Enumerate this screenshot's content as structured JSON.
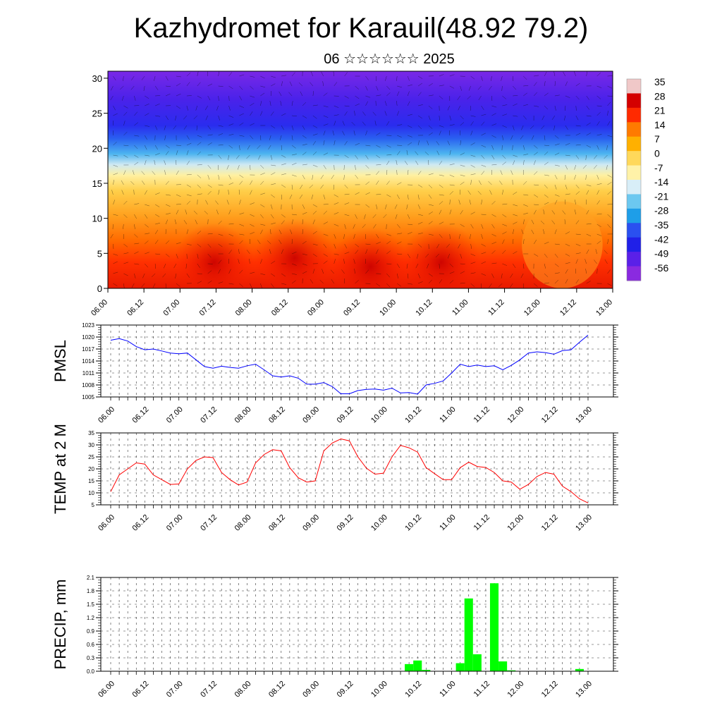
{
  "title": "Kazhydromet for Karauil(48.92 79.2)",
  "subtitle": "06 ☆☆☆☆☆☆ 2025",
  "chart_data": [
    {
      "type": "heatmap",
      "ylim": [
        0,
        31
      ],
      "y_ticks": [
        0,
        5,
        10,
        15,
        20,
        25,
        30
      ],
      "x_ticks": [
        "06.00",
        "06.12",
        "07.00",
        "07.12",
        "08.00",
        "08.12",
        "09.00",
        "09.12",
        "10.00",
        "10.12",
        "11.00",
        "11.12",
        "12.00",
        "12.12",
        "13.00"
      ],
      "colorbar_labels": [
        "35",
        "28",
        "21",
        "14",
        "7",
        "0",
        "-7",
        "-14",
        "-21",
        "-28",
        "-35",
        "-42",
        "-49",
        "-56"
      ],
      "colorbar_colors": [
        "#f0c8c8",
        "#d40000",
        "#ff2a00",
        "#ff7a00",
        "#ffb000",
        "#ffd85a",
        "#fff2a8",
        "#d8eef8",
        "#6cc8f0",
        "#1e9ee8",
        "#2a50f0",
        "#2020e8",
        "#5a20e8",
        "#8a2ae0"
      ],
      "description_note": ""
    },
    {
      "type": "line",
      "ylabel": "PMSL",
      "ylim": [
        1005,
        1023
      ],
      "y_ticks": [
        1005,
        1008,
        1011,
        1014,
        1017,
        1020,
        1023
      ],
      "x_ticks": [
        "06.00",
        "06.12",
        "07.00",
        "07.12",
        "08.00",
        "08.12",
        "09.00",
        "09.12",
        "10.00",
        "10.12",
        "11.00",
        "11.12",
        "12.00",
        "12.12",
        "13.00"
      ],
      "color": "#0000ff",
      "x": [
        0,
        3,
        6,
        9,
        12,
        15,
        18,
        21,
        24,
        27,
        30,
        33,
        36,
        39,
        42,
        45,
        48,
        51,
        54,
        57,
        60,
        63,
        66,
        69,
        72,
        75,
        78,
        81,
        84,
        87,
        90,
        93,
        96,
        99,
        102,
        105,
        108,
        111,
        114,
        117,
        120,
        123,
        126,
        129,
        132,
        135,
        138,
        141,
        144,
        147,
        150,
        153,
        156,
        159,
        162,
        165,
        168
      ],
      "values": [
        1019.2,
        1019.6,
        1019.0,
        1017.6,
        1016.8,
        1017.0,
        1016.5,
        1016.0,
        1015.8,
        1016.0,
        1014.3,
        1012.6,
        1012.2,
        1012.7,
        1012.4,
        1012.2,
        1012.8,
        1013.2,
        1011.8,
        1010.3,
        1010.0,
        1010.3,
        1009.7,
        1008.2,
        1008.2,
        1008.6,
        1007.6,
        1005.8,
        1005.8,
        1006.6,
        1006.9,
        1007.0,
        1006.7,
        1007.2,
        1006.0,
        1006.1,
        1005.7,
        1008.0,
        1008.4,
        1009.0,
        1011.0,
        1013.2,
        1012.6,
        1013.0,
        1012.6,
        1012.8,
        1011.8,
        1012.9,
        1014.3,
        1016.0,
        1016.3,
        1016.1,
        1015.7,
        1016.6,
        1016.8,
        1018.7,
        1020.5
      ]
    },
    {
      "type": "line",
      "ylabel": "TEMP at 2 M",
      "ylim": [
        5,
        35
      ],
      "y_ticks": [
        5,
        10,
        15,
        20,
        25,
        30,
        35
      ],
      "x_ticks": [
        "06.00",
        "06.12",
        "07.00",
        "07.12",
        "08.00",
        "08.12",
        "09.00",
        "09.12",
        "10.00",
        "10.12",
        "11.00",
        "11.12",
        "12.00",
        "12.12",
        "13.00"
      ],
      "color": "#ff0000",
      "x": [
        0,
        3,
        6,
        9,
        12,
        15,
        18,
        21,
        24,
        27,
        30,
        33,
        36,
        39,
        42,
        45,
        48,
        51,
        54,
        57,
        60,
        63,
        66,
        69,
        72,
        75,
        78,
        81,
        84,
        87,
        90,
        93,
        96,
        99,
        102,
        105,
        108,
        111,
        114,
        117,
        120,
        123,
        126,
        129,
        132,
        135,
        138,
        141,
        144,
        147,
        150,
        153,
        156,
        159,
        162,
        165,
        168
      ],
      "values": [
        10.5,
        17.5,
        20.0,
        22.5,
        22.0,
        17.5,
        15.5,
        13.5,
        13.7,
        20.0,
        23.5,
        25.0,
        24.7,
        18.5,
        15.5,
        13.3,
        14.5,
        22.5,
        26.0,
        28.0,
        27.5,
        20.5,
        16.3,
        14.5,
        15.0,
        27.5,
        30.8,
        32.5,
        31.7,
        25.0,
        20.3,
        17.8,
        18.2,
        25.0,
        29.8,
        28.8,
        27.0,
        20.5,
        18.0,
        15.5,
        15.5,
        20.5,
        22.8,
        21.0,
        20.6,
        18.5,
        15.0,
        14.5,
        11.5,
        13.5,
        16.8,
        18.5,
        17.8,
        12.8,
        10.5,
        7.5,
        5.8
      ]
    },
    {
      "type": "bar",
      "ylabel": "PRECIP, mm",
      "ylim": [
        0,
        2.1
      ],
      "y_ticks": [
        "0.0",
        "0.3",
        "0.6",
        "0.9",
        "1.2",
        "1.5",
        "1.8",
        "2.1"
      ],
      "x_ticks": [
        "06.00",
        "06.12",
        "07.00",
        "07.12",
        "08.00",
        "08.12",
        "09.00",
        "09.12",
        "10.00",
        "10.12",
        "11.00",
        "11.12",
        "12.00",
        "12.12",
        "13.00"
      ],
      "color": "#00ff00",
      "x": [
        105,
        108,
        111,
        123,
        126,
        129,
        135,
        138,
        141,
        165
      ],
      "values": [
        0.16,
        0.24,
        0.03,
        0.18,
        1.63,
        0.38,
        1.97,
        0.22,
        0.02,
        0.05
      ]
    }
  ]
}
